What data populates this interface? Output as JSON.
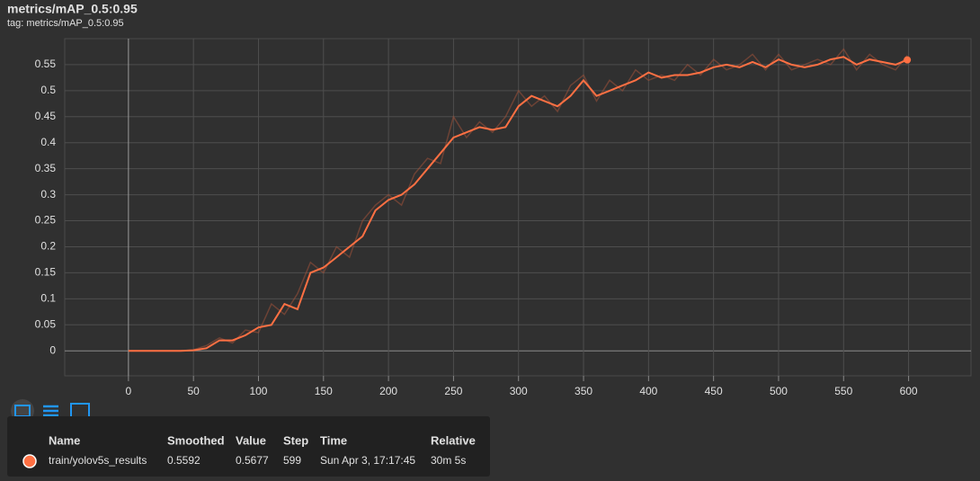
{
  "header": {
    "title": "metrics/mAP_0.5:0.95",
    "tag": "tag: metrics/mAP_0.5:0.95"
  },
  "chart_data": {
    "type": "line",
    "x": [
      0,
      10,
      20,
      30,
      40,
      50,
      60,
      70,
      80,
      90,
      100,
      110,
      120,
      130,
      140,
      150,
      160,
      170,
      180,
      190,
      200,
      210,
      220,
      230,
      240,
      250,
      260,
      270,
      280,
      290,
      300,
      310,
      320,
      330,
      340,
      350,
      360,
      370,
      380,
      390,
      400,
      410,
      420,
      430,
      440,
      450,
      460,
      470,
      480,
      490,
      500,
      510,
      520,
      530,
      540,
      550,
      560,
      570,
      580,
      590,
      599
    ],
    "series": [
      {
        "name": "train/yolov5s_results",
        "color": "#ff7043",
        "values": [
          0,
          0,
          0,
          0,
          0,
          0.001,
          0.005,
          0.02,
          0.02,
          0.03,
          0.045,
          0.05,
          0.09,
          0.08,
          0.15,
          0.16,
          0.18,
          0.2,
          0.22,
          0.27,
          0.29,
          0.3,
          0.32,
          0.35,
          0.38,
          0.41,
          0.42,
          0.43,
          0.425,
          0.43,
          0.47,
          0.49,
          0.48,
          0.47,
          0.49,
          0.52,
          0.49,
          0.5,
          0.51,
          0.52,
          0.535,
          0.525,
          0.53,
          0.53,
          0.535,
          0.545,
          0.55,
          0.545,
          0.555,
          0.545,
          0.56,
          0.55,
          0.545,
          0.55,
          0.56,
          0.565,
          0.55,
          0.56,
          0.555,
          0.55,
          0.5592
        ]
      },
      {
        "color": "#a0523a",
        "values": [
          0,
          0,
          0,
          0,
          0,
          0.002,
          0.01,
          0.025,
          0.015,
          0.04,
          0.035,
          0.09,
          0.07,
          0.11,
          0.17,
          0.15,
          0.2,
          0.18,
          0.25,
          0.28,
          0.3,
          0.28,
          0.34,
          0.37,
          0.36,
          0.45,
          0.41,
          0.44,
          0.42,
          0.45,
          0.5,
          0.47,
          0.49,
          0.46,
          0.51,
          0.53,
          0.48,
          0.52,
          0.5,
          0.54,
          0.52,
          0.53,
          0.52,
          0.55,
          0.53,
          0.56,
          0.54,
          0.55,
          0.57,
          0.54,
          0.57,
          0.54,
          0.55,
          0.56,
          0.55,
          0.58,
          0.54,
          0.57,
          0.55,
          0.54,
          0.5677
        ]
      }
    ],
    "xlim": [
      -49,
      648
    ],
    "ylim": [
      -0.048,
      0.6
    ],
    "xticks": [
      0,
      50,
      100,
      150,
      200,
      250,
      300,
      350,
      400,
      450,
      500,
      550,
      600
    ],
    "yticks": [
      0,
      0.05,
      0.1,
      0.15,
      0.2,
      0.25,
      0.3,
      0.35,
      0.4,
      0.45,
      0.5,
      0.55
    ],
    "grid": true
  },
  "tooltip": {
    "columns": [
      "Name",
      "Smoothed",
      "Value",
      "Step",
      "Time",
      "Relative"
    ],
    "rows": [
      [
        "train/yolov5s_results",
        "0.5592",
        "0.5677",
        "599",
        "Sun Apr 3, 17:17:45",
        "30m 5s"
      ]
    ]
  }
}
